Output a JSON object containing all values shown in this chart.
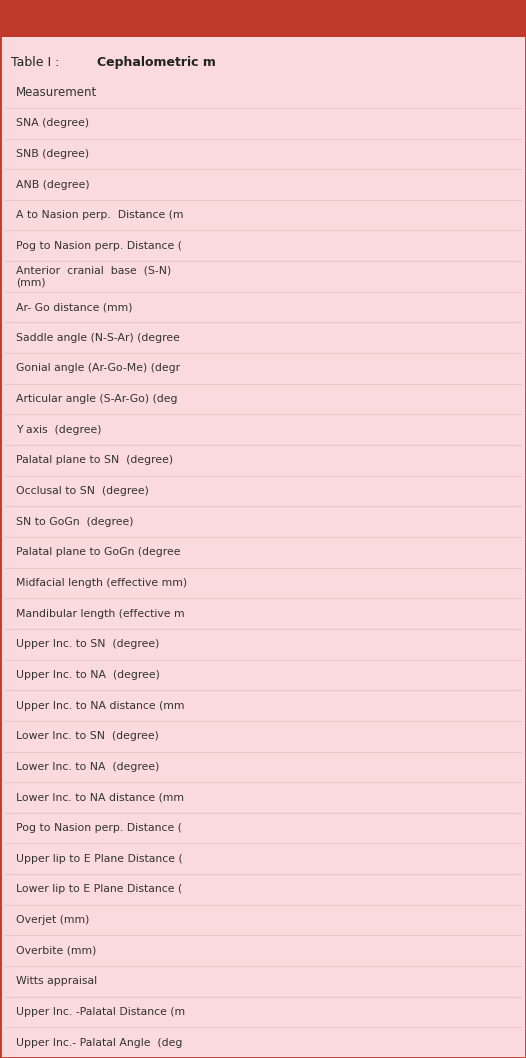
{
  "title_label": "Table I : ",
  "title_bold": "Cephalometric m",
  "header_bg": "#c0392b",
  "row_bg": "#fadadd",
  "title_text_color": "#222222",
  "row_text_color": "#333333",
  "rows": [
    "Measurement",
    "SNA (degree)",
    "SNB (degree)",
    "ANB (degree)",
    "A to Nasion perp.  Distance (m",
    "Pog to Nasion perp. Distance (",
    "Anterior  cranial  base  (S-N)\n(mm)",
    "Ar- Go distance (mm)",
    "Saddle angle (N-S-Ar) (degree",
    "Gonial angle (Ar-Go-Me) (degr",
    "Articular angle (S-Ar-Go) (deg",
    "Y axis  (degree)",
    "Palatal plane to SN  (degree)",
    "Occlusal to SN  (degree)",
    "SN to GoGn  (degree)",
    "Palatal plane to GoGn (degree",
    "Midfacial length (effective mm)",
    "Mandibular length (effective m",
    "Upper Inc. to SN  (degree)",
    "Upper Inc. to NA  (degree)",
    "Upper Inc. to NA distance (mm",
    "Lower Inc. to SN  (degree)",
    "Lower Inc. to NA  (degree)",
    "Lower Inc. to NA distance (mm",
    "Pog to Nasion perp. Distance (",
    "Upper lip to E Plane Distance (",
    "Lower lip to E Plane Distance (",
    "Overjet (mm)",
    "Overbite (mm)",
    "Witts appraisal",
    "Upper Inc. -Palatal Distance (m",
    "Upper Inc.- Palatal Angle  (deg"
  ],
  "fig_width": 5.26,
  "fig_height": 10.58,
  "dpi": 100
}
